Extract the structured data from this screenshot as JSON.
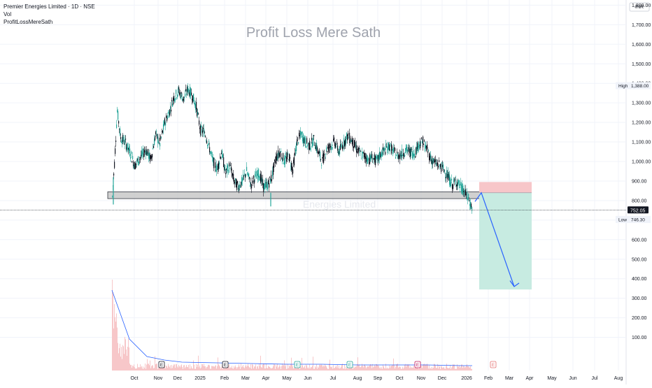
{
  "header": {
    "symbol_line": "Premier Energies Limited · 1D · NSE",
    "indicator_1": "Vol",
    "indicator_2": "ProfitLossMereSath"
  },
  "watermark": {
    "center_title": "Profit Loss Mere Sath",
    "company": "Energies Limited"
  },
  "currency_label": "INR",
  "colors": {
    "up": "#26a69a",
    "down": "#131722",
    "grid": "#f0f3fa",
    "support_zone": "#c8c8c8",
    "stop_zone": "#f7c6c9",
    "target_zone": "#c7ebe1",
    "arrow": "#2962ff",
    "volume_bar": "#f7c7c9",
    "volume_ma": "#2962ff"
  },
  "price_markers": {
    "high_label": "High",
    "high_value": "1,388.00",
    "current_value": "752.05",
    "low_label": "Low",
    "low_value": "746.30"
  },
  "events": [
    "E",
    "E",
    "E",
    "E",
    "E",
    "E"
  ],
  "chart_data": {
    "type": "candlestick",
    "y_ticks": [
      100,
      200,
      300,
      400,
      500,
      600,
      700,
      800,
      900,
      1000,
      1100,
      1200,
      1300,
      1400,
      1500,
      1600,
      1700,
      1800
    ],
    "y_tick_labels": [
      "100.00",
      "200.00",
      "300.00",
      "400.00",
      "500.00",
      "600.00",
      "700.00",
      "800.00",
      "900.00",
      "1,000.00",
      "1,100.00",
      "1,200.00",
      "1,300.00",
      "1,400.00",
      "1,500.00",
      "1,600.00",
      "1,700.00",
      "1,800.00"
    ],
    "x_labels": [
      "Oct",
      "Nov",
      "Dec",
      "2025",
      "Feb",
      "Mar",
      "Apr",
      "May",
      "Jun",
      "Jul",
      "Aug",
      "Sep",
      "Oct",
      "Nov",
      "Dec",
      "2026",
      "Feb",
      "Mar",
      "Apr",
      "May",
      "Jun",
      "Jul",
      "Aug"
    ],
    "close_path": [
      [
        0,
        820
      ],
      [
        3,
        990
      ],
      [
        7,
        1260
      ],
      [
        12,
        1120
      ],
      [
        18,
        1100
      ],
      [
        25,
        1050
      ],
      [
        32,
        980
      ],
      [
        40,
        1020
      ],
      [
        48,
        1060
      ],
      [
        55,
        1010
      ],
      [
        62,
        1140
      ],
      [
        68,
        1090
      ],
      [
        75,
        1200
      ],
      [
        82,
        1260
      ],
      [
        88,
        1330
      ],
      [
        95,
        1360
      ],
      [
        102,
        1320
      ],
      [
        108,
        1370
      ],
      [
        114,
        1340
      ],
      [
        120,
        1280
      ],
      [
        126,
        1160
      ],
      [
        132,
        1150
      ],
      [
        138,
        1080
      ],
      [
        144,
        1000
      ],
      [
        150,
        960
      ],
      [
        156,
        1050
      ],
      [
        162,
        940
      ],
      [
        168,
        980
      ],
      [
        174,
        900
      ],
      [
        180,
        870
      ],
      [
        186,
        900
      ],
      [
        192,
        950
      ],
      [
        198,
        880
      ],
      [
        204,
        920
      ],
      [
        210,
        940
      ],
      [
        216,
        870
      ],
      [
        222,
        880
      ],
      [
        228,
        920
      ],
      [
        234,
        1020
      ],
      [
        240,
        1050
      ],
      [
        246,
        1000
      ],
      [
        252,
        1030
      ],
      [
        258,
        960
      ],
      [
        264,
        1100
      ],
      [
        270,
        1140
      ],
      [
        276,
        1100
      ],
      [
        282,
        1080
      ],
      [
        288,
        1110
      ],
      [
        294,
        1050
      ],
      [
        300,
        1000
      ],
      [
        306,
        1060
      ],
      [
        312,
        1080
      ],
      [
        318,
        1100
      ],
      [
        324,
        1050
      ],
      [
        330,
        1090
      ],
      [
        336,
        1130
      ],
      [
        342,
        1110
      ],
      [
        348,
        1070
      ],
      [
        354,
        1040
      ],
      [
        360,
        1030
      ],
      [
        366,
        1010
      ],
      [
        372,
        1020
      ],
      [
        378,
        1000
      ],
      [
        384,
        1040
      ],
      [
        390,
        1060
      ],
      [
        396,
        1080
      ],
      [
        402,
        1050
      ],
      [
        408,
        1030
      ],
      [
        414,
        1040
      ],
      [
        420,
        1060
      ],
      [
        426,
        1050
      ],
      [
        432,
        1040
      ],
      [
        438,
        1090
      ],
      [
        444,
        1100
      ],
      [
        450,
        1060
      ],
      [
        456,
        1010
      ],
      [
        462,
        990
      ],
      [
        468,
        980
      ],
      [
        474,
        960
      ],
      [
        480,
        920
      ],
      [
        486,
        880
      ],
      [
        492,
        900
      ],
      [
        498,
        870
      ],
      [
        504,
        840
      ],
      [
        510,
        800
      ],
      [
        515,
        752.05
      ]
    ],
    "support_zone": {
      "low": 810,
      "high": 845
    },
    "trade_setup": {
      "stop_high": 895,
      "entry": 840,
      "target": 345,
      "projected_low": 350
    },
    "volume_ma": [
      [
        0,
        115
      ],
      [
        25,
        45
      ],
      [
        50,
        20
      ],
      [
        75,
        15
      ],
      [
        100,
        12
      ],
      [
        150,
        11
      ],
      [
        200,
        10
      ],
      [
        250,
        9
      ],
      [
        300,
        9
      ],
      [
        350,
        8
      ],
      [
        400,
        8
      ],
      [
        450,
        8
      ],
      [
        500,
        7
      ],
      [
        515,
        7
      ]
    ]
  }
}
